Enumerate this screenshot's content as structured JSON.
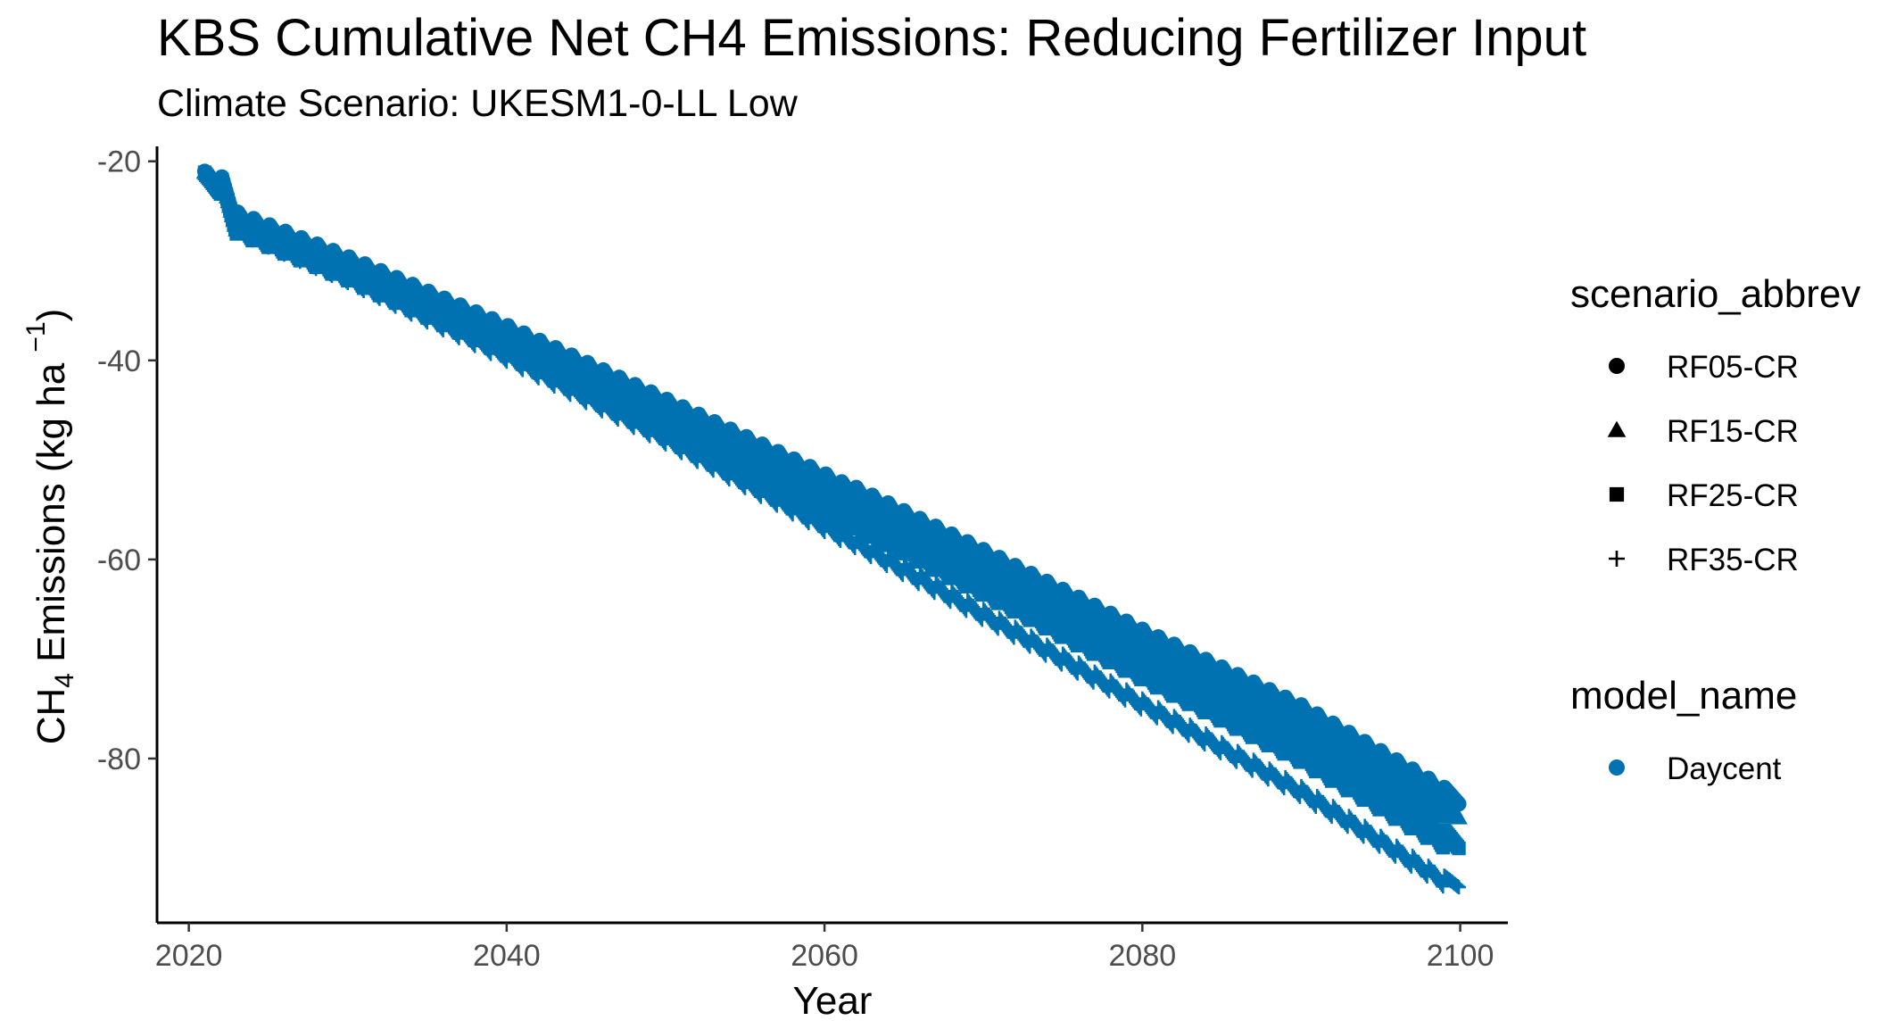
{
  "chart_data": {
    "type": "scatter",
    "title": "KBS  Cumulative Net CH4 Emissions: Reducing Fertilizer Input",
    "subtitle": "Climate Scenario: UKESM1-0-LL Low",
    "xlabel": "Year",
    "ylabel": {
      "main": "CH",
      "sub": "4",
      "rest": " Emissions (kg ha ",
      "sup": "−1",
      "close": ")"
    },
    "x_ticks": [
      2020,
      2040,
      2060,
      2080,
      2100
    ],
    "y_ticks": [
      -20,
      -40,
      -60,
      -80
    ],
    "xlim": [
      2018,
      2103
    ],
    "ylim": [
      -96.5,
      -18.5
    ],
    "grid": false,
    "color": "#0072B2",
    "legend": {
      "placement": "right",
      "shape_title": "scenario_abbrev",
      "shape_items": [
        {
          "label": "RF05-CR",
          "shape": "circle"
        },
        {
          "label": "RF15-CR",
          "shape": "triangle"
        },
        {
          "label": "RF25-CR",
          "shape": "square"
        },
        {
          "label": "RF35-CR",
          "shape": "plus"
        }
      ],
      "color_title": "model_name",
      "color_items": [
        {
          "label": "Daycent",
          "color": "#0072B2"
        }
      ]
    },
    "series": [
      {
        "name": "RF05-CR",
        "shape": "circle",
        "x_start": 2021,
        "x_end": 2099,
        "anchors": [
          [
            2021,
            -21.9
          ],
          [
            2022,
            -22.0
          ],
          [
            2023,
            -25.8
          ],
          [
            2030,
            -30.3
          ],
          [
            2040,
            -37.2
          ],
          [
            2050,
            -44.6
          ],
          [
            2060,
            -52.1
          ],
          [
            2070,
            -59.9
          ],
          [
            2080,
            -67.9
          ],
          [
            2090,
            -75.5
          ],
          [
            2099,
            -83.8
          ]
        ],
        "amplitude": 2.0
      },
      {
        "name": "RF15-CR",
        "shape": "triangle",
        "x_start": 2021,
        "x_end": 2099,
        "anchors": [
          [
            2021,
            -22.0
          ],
          [
            2022,
            -22.1
          ],
          [
            2023,
            -26.0
          ],
          [
            2030,
            -30.6
          ],
          [
            2040,
            -37.6
          ],
          [
            2050,
            -45.2
          ],
          [
            2060,
            -52.9
          ],
          [
            2070,
            -60.8
          ],
          [
            2080,
            -68.9
          ],
          [
            2090,
            -76.8
          ],
          [
            2099,
            -85.2
          ]
        ],
        "amplitude": 2.0
      },
      {
        "name": "RF25-CR",
        "shape": "square",
        "x_start": 2021,
        "x_end": 2099,
        "anchors": [
          [
            2021,
            -22.1
          ],
          [
            2022,
            -22.3
          ],
          [
            2023,
            -26.3
          ],
          [
            2030,
            -31.0
          ],
          [
            2040,
            -38.5
          ],
          [
            2050,
            -46.5
          ],
          [
            2060,
            -54.5
          ],
          [
            2070,
            -62.8
          ],
          [
            2080,
            -71.3
          ],
          [
            2090,
            -79.6
          ],
          [
            2099,
            -88.2
          ]
        ],
        "amplitude": 2.2
      },
      {
        "name": "RF35-CR",
        "shape": "plus",
        "x_start": 2021,
        "x_end": 2099,
        "anchors": [
          [
            2021,
            -22.2
          ],
          [
            2022,
            -22.5
          ],
          [
            2023,
            -26.6
          ],
          [
            2030,
            -31.6
          ],
          [
            2040,
            -39.5
          ],
          [
            2050,
            -47.8
          ],
          [
            2060,
            -56.6
          ],
          [
            2070,
            -65.6
          ],
          [
            2080,
            -74.6
          ],
          [
            2090,
            -83.4
          ],
          [
            2099,
            -92.4
          ]
        ],
        "amplitude": 1.4
      }
    ]
  }
}
